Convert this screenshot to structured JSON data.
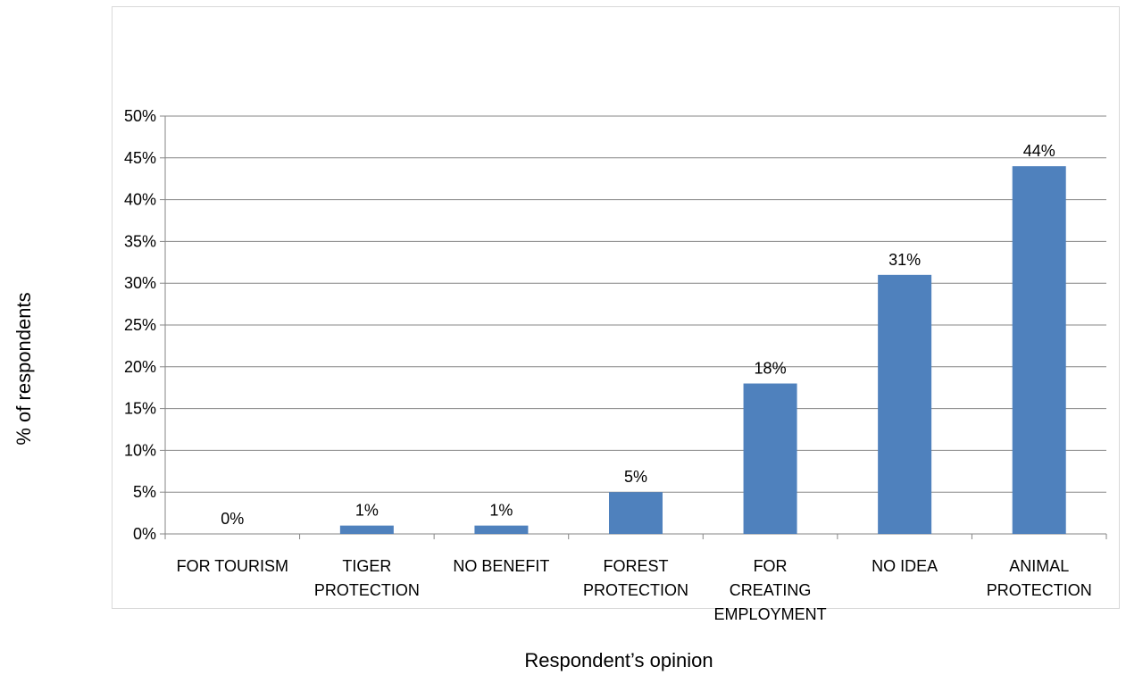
{
  "chart_data": {
    "type": "bar",
    "title": "",
    "xlabel": "Respondent’s opinion",
    "ylabel": "% of respondents",
    "categories": [
      [
        "FOR TOURISM"
      ],
      [
        "TIGER",
        "PROTECTION"
      ],
      [
        "NO BENEFIT"
      ],
      [
        "FOREST",
        "PROTECTION"
      ],
      [
        "FOR",
        "CREATING",
        "EMPLOYMENT"
      ],
      [
        "NO IDEA"
      ],
      [
        "ANIMAL",
        "PROTECTION"
      ]
    ],
    "values": [
      0,
      1,
      1,
      5,
      18,
      31,
      44
    ],
    "data_labels": [
      "0%",
      "1%",
      "1%",
      "5%",
      "18%",
      "31%",
      "44%"
    ],
    "yticks": [
      "0%",
      "5%",
      "10%",
      "15%",
      "20%",
      "25%",
      "30%",
      "35%",
      "40%",
      "45%",
      "50%"
    ],
    "ylim": [
      0,
      50
    ],
    "grid": true,
    "legend": "none",
    "bar_color": "#4f81bd",
    "grid_color": "#868686"
  }
}
